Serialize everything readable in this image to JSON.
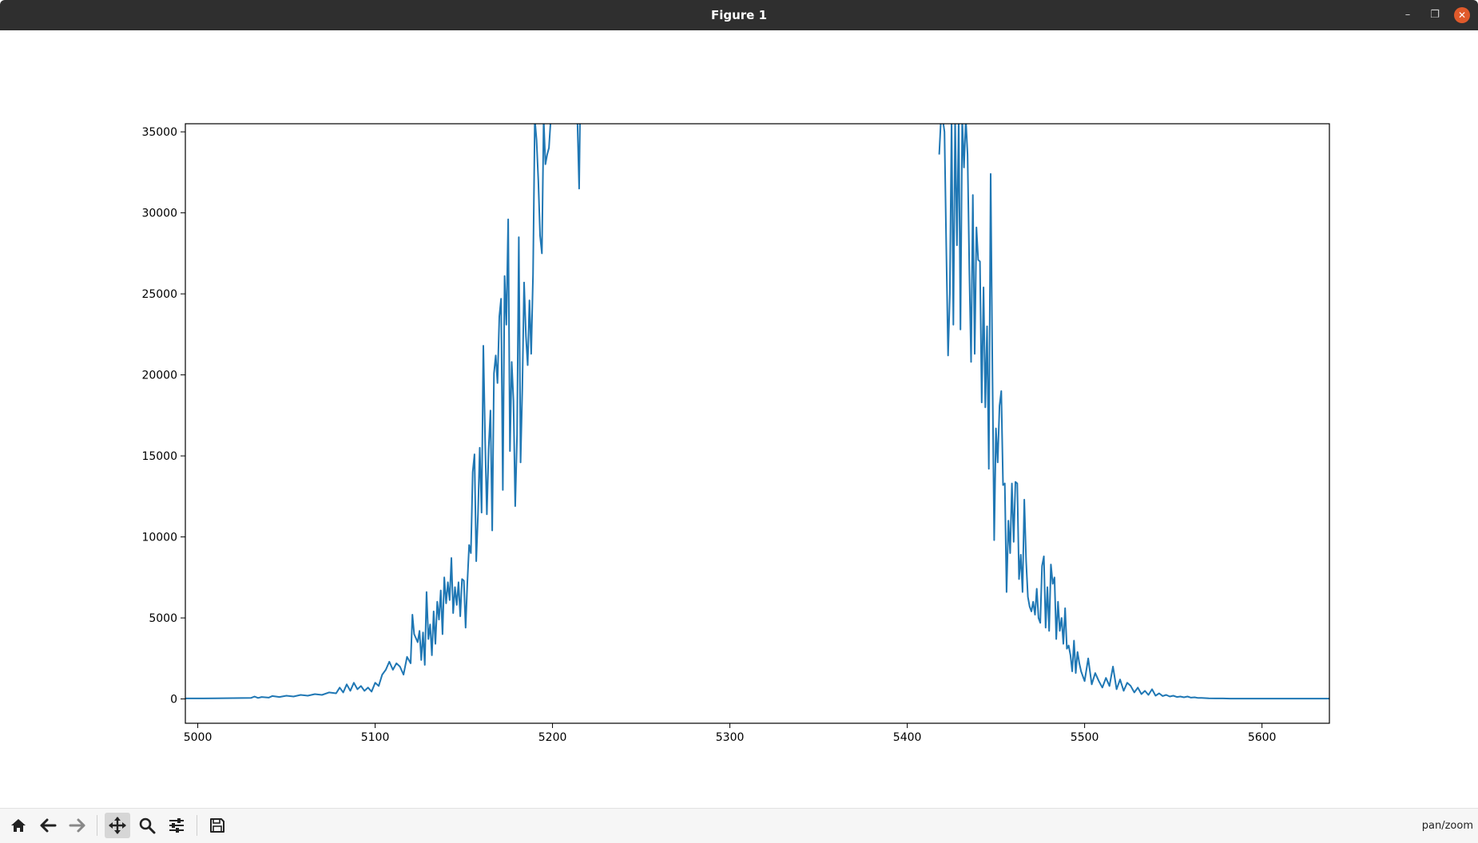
{
  "window": {
    "title": "Figure 1",
    "minimize_icon": "minimize-icon",
    "maximize_icon": "restore-icon",
    "close_icon": "close-icon"
  },
  "toolbar": {
    "buttons": [
      {
        "name": "home-button",
        "icon": "home-icon"
      },
      {
        "name": "back-button",
        "icon": "arrow-left-icon"
      },
      {
        "name": "forward-button",
        "icon": "arrow-right-icon"
      },
      {
        "name": "pan-button",
        "icon": "move-icon",
        "active": true
      },
      {
        "name": "zoom-button",
        "icon": "magnifier-icon"
      },
      {
        "name": "configure-subplots-button",
        "icon": "sliders-icon"
      },
      {
        "name": "save-button",
        "icon": "floppy-disk-icon"
      }
    ],
    "status": "pan/zoom"
  },
  "chart_data": {
    "type": "line",
    "title": "",
    "xlabel": "",
    "ylabel": "",
    "xlim": [
      4993,
      5638
    ],
    "ylim": [
      -1500,
      35500
    ],
    "xticks": [
      5000,
      5100,
      5200,
      5300,
      5400,
      5500,
      5600
    ],
    "xtick_labels": [
      "5000",
      "5100",
      "5200",
      "5300",
      "5400",
      "5500",
      "5600"
    ],
    "yticks": [
      0,
      5000,
      10000,
      15000,
      20000,
      25000,
      30000,
      35000
    ],
    "ytick_labels": [
      "0",
      "5000",
      "10000",
      "15000",
      "20000",
      "25000",
      "30000",
      "35000"
    ],
    "grid": false,
    "legend": "none",
    "line_color": "#1f77b4",
    "segments": [
      {
        "x": [
          4993,
          5000,
          5010,
          5020,
          5030,
          5032,
          5034,
          5036,
          5040,
          5042,
          5046,
          5050,
          5054,
          5058,
          5062,
          5066,
          5070,
          5074,
          5078,
          5080,
          5082,
          5084,
          5086,
          5088,
          5090,
          5092,
          5094,
          5096,
          5098,
          5100,
          5102,
          5104,
          5106,
          5108,
          5110,
          5112,
          5114,
          5116,
          5118,
          5120,
          5121,
          5122,
          5124,
          5125,
          5126,
          5127,
          5128,
          5129,
          5130,
          5131,
          5132,
          5133,
          5134,
          5135,
          5136,
          5137,
          5138,
          5139,
          5140,
          5141,
          5142,
          5143,
          5144,
          5145,
          5146,
          5147,
          5148,
          5149,
          5150,
          5151,
          5152,
          5153,
          5154,
          5155,
          5156,
          5157,
          5158,
          5159,
          5160,
          5161,
          5162,
          5163,
          5164,
          5165,
          5166,
          5167,
          5168,
          5169,
          5170,
          5171,
          5172,
          5173,
          5174,
          5175,
          5176,
          5177,
          5178,
          5179,
          5180,
          5181,
          5182,
          5183,
          5184,
          5185,
          5186,
          5187,
          5188,
          5189,
          5190,
          5191,
          5192,
          5193,
          5194,
          5195,
          5196,
          5197,
          5198,
          5199,
          5200,
          5201,
          5202,
          5203,
          5204
        ],
        "y": [
          30,
          30,
          40,
          50,
          60,
          150,
          60,
          120,
          80,
          180,
          120,
          200,
          150,
          250,
          200,
          300,
          250,
          400,
          350,
          700,
          400,
          900,
          500,
          1000,
          600,
          800,
          500,
          700,
          450,
          1000,
          800,
          1500,
          1800,
          2300,
          1800,
          2200,
          2000,
          1500,
          2600,
          2200,
          5200,
          4000,
          3500,
          4200,
          2400,
          4100,
          2100,
          6600,
          3700,
          4600,
          2700,
          5400,
          3400,
          6000,
          4900,
          6700,
          4000,
          7500,
          5900,
          7200,
          6100,
          8700,
          5300,
          6900,
          5800,
          7200,
          5100,
          7400,
          7300,
          4400,
          7200,
          9500,
          9000,
          14000,
          15100,
          8500,
          11400,
          15500,
          11500,
          21800,
          16000,
          11400,
          15400,
          17800,
          10400,
          20100,
          21200,
          19500,
          23600,
          24700,
          12900,
          26100,
          23100,
          29600,
          15300,
          20800,
          18400,
          11900,
          16300,
          28500,
          14600,
          19200,
          25700,
          22400,
          20600,
          24600,
          21300,
          26200,
          36000,
          34500,
          32000,
          28600,
          27500,
          36000,
          33000,
          33600,
          34000,
          36000,
          35600,
          36000,
          36000,
          35800,
          36000
        ],
        "note": "values above the visible y-range are clipped at the top of the axes"
      },
      {
        "x": [
          5214,
          5215,
          5215.5
        ],
        "y": [
          36000,
          31500,
          36000
        ]
      },
      {
        "x": [
          5418,
          5419,
          5420,
          5421,
          5422,
          5423,
          5424,
          5425,
          5426,
          5427,
          5428,
          5429,
          5430,
          5431,
          5432,
          5433,
          5434,
          5435,
          5436,
          5437,
          5438,
          5439,
          5440,
          5441,
          5442,
          5443,
          5444,
          5445,
          5446,
          5447,
          5448,
          5449,
          5450,
          5451,
          5452,
          5453,
          5454,
          5455,
          5456,
          5457,
          5458,
          5459,
          5460,
          5461,
          5462,
          5463,
          5464,
          5465,
          5466,
          5467,
          5468,
          5469,
          5470,
          5471,
          5472,
          5473,
          5474,
          5475,
          5476,
          5477,
          5478,
          5479,
          5480,
          5481,
          5482,
          5483,
          5484,
          5485,
          5486,
          5487,
          5488,
          5489,
          5490,
          5491,
          5492,
          5493,
          5494,
          5495,
          5496,
          5497,
          5498,
          5499,
          5500,
          5502,
          5504,
          5506,
          5508,
          5510,
          5512,
          5514,
          5516,
          5518,
          5520,
          5522,
          5524,
          5526,
          5528,
          5530,
          5532,
          5534,
          5536,
          5538,
          5540,
          5542,
          5544,
          5546,
          5548,
          5550,
          5552,
          5554,
          5556,
          5558,
          5560,
          5562,
          5564,
          5566,
          5568,
          5570,
          5574,
          5578,
          5582,
          5586,
          5590,
          5600,
          5610,
          5620,
          5638
        ],
        "y": [
          33600,
          36000,
          36000,
          35000,
          28000,
          21200,
          25000,
          36000,
          23100,
          36000,
          28000,
          36000,
          22800,
          36000,
          32800,
          36000,
          33600,
          26500,
          20800,
          31100,
          21300,
          29100,
          27100,
          27000,
          18300,
          25400,
          18000,
          23000,
          14200,
          32400,
          20300,
          9800,
          16700,
          14600,
          18100,
          19000,
          13200,
          13300,
          6600,
          11000,
          9000,
          13300,
          9700,
          13400,
          13300,
          7400,
          8900,
          6600,
          12300,
          8500,
          6300,
          5700,
          5400,
          6000,
          5200,
          6800,
          5000,
          4700,
          8200,
          8800,
          4400,
          6900,
          4200,
          8300,
          7100,
          7500,
          3700,
          6000,
          4200,
          5000,
          3400,
          5600,
          3100,
          3300,
          2700,
          1700,
          3600,
          1600,
          2900,
          2200,
          1700,
          1400,
          1100,
          2500,
          900,
          1600,
          1100,
          700,
          1300,
          800,
          2000,
          600,
          1200,
          500,
          1000,
          800,
          400,
          700,
          300,
          500,
          250,
          600,
          200,
          350,
          180,
          250,
          150,
          200,
          120,
          150,
          100,
          150,
          80,
          100,
          60,
          60,
          50,
          40,
          30,
          30,
          20,
          20,
          20,
          20,
          20,
          20,
          20
        ],
        "note": "values above the visible y-range are clipped at the top of the axes"
      }
    ]
  }
}
